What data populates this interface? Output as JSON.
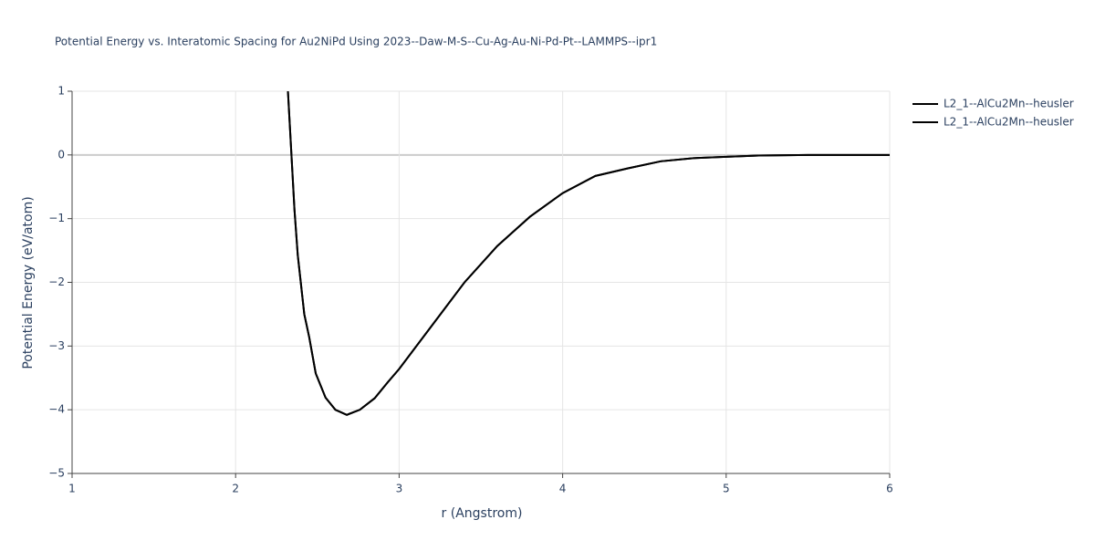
{
  "chart_data": {
    "type": "line",
    "title": "Potential Energy vs. Interatomic Spacing for Au2NiPd Using 2023--Daw-M-S--Cu-Ag-Au-Ni-Pd-Pt--LAMMPS--ipr1",
    "x_label": "r (Angstrom)",
    "y_label": "Potential Energy (eV/atom)",
    "x": [
      2.32,
      2.36,
      2.38,
      2.42,
      2.45,
      2.49,
      2.55,
      2.61,
      2.68,
      2.76,
      2.85,
      2.93,
      3.0,
      3.2,
      3.4,
      3.6,
      3.8,
      4.0,
      4.2,
      4.4,
      4.6,
      4.8,
      5.0,
      5.2,
      5.5,
      6.0
    ],
    "series": [
      {
        "name": "L2_1--AlCu2Mn--heusler",
        "color": "#000000",
        "values": [
          1.0,
          -0.86,
          -1.57,
          -2.5,
          -2.86,
          -3.43,
          -3.81,
          -4.0,
          -4.08,
          -4.0,
          -3.82,
          -3.57,
          -3.36,
          -2.68,
          -2.0,
          -1.43,
          -0.97,
          -0.6,
          -0.33,
          -0.21,
          -0.1,
          -0.05,
          -0.03,
          -0.01,
          0.0,
          0.0
        ]
      },
      {
        "name": "L2_1--AlCu2Mn--heusler",
        "color": "#000000",
        "values": [
          1.0,
          -0.86,
          -1.57,
          -2.5,
          -2.86,
          -3.43,
          -3.81,
          -4.0,
          -4.08,
          -4.0,
          -3.82,
          -3.57,
          -3.36,
          -2.68,
          -2.0,
          -1.43,
          -0.97,
          -0.6,
          -0.33,
          -0.21,
          -0.1,
          -0.05,
          -0.03,
          -0.01,
          0.0,
          0.0
        ]
      }
    ],
    "xlim": [
      1,
      6
    ],
    "xticks": [
      1,
      2,
      3,
      4,
      5,
      6
    ],
    "ylim": [
      -5,
      1
    ],
    "yticks": [
      {
        "value": -5,
        "label": "−5"
      },
      {
        "value": -4,
        "label": "−4"
      },
      {
        "value": -3,
        "label": "−3"
      },
      {
        "value": -2,
        "label": "−2"
      },
      {
        "value": -1,
        "label": "−1"
      },
      0,
      1
    ],
    "grid": true,
    "legend": "top-right"
  }
}
